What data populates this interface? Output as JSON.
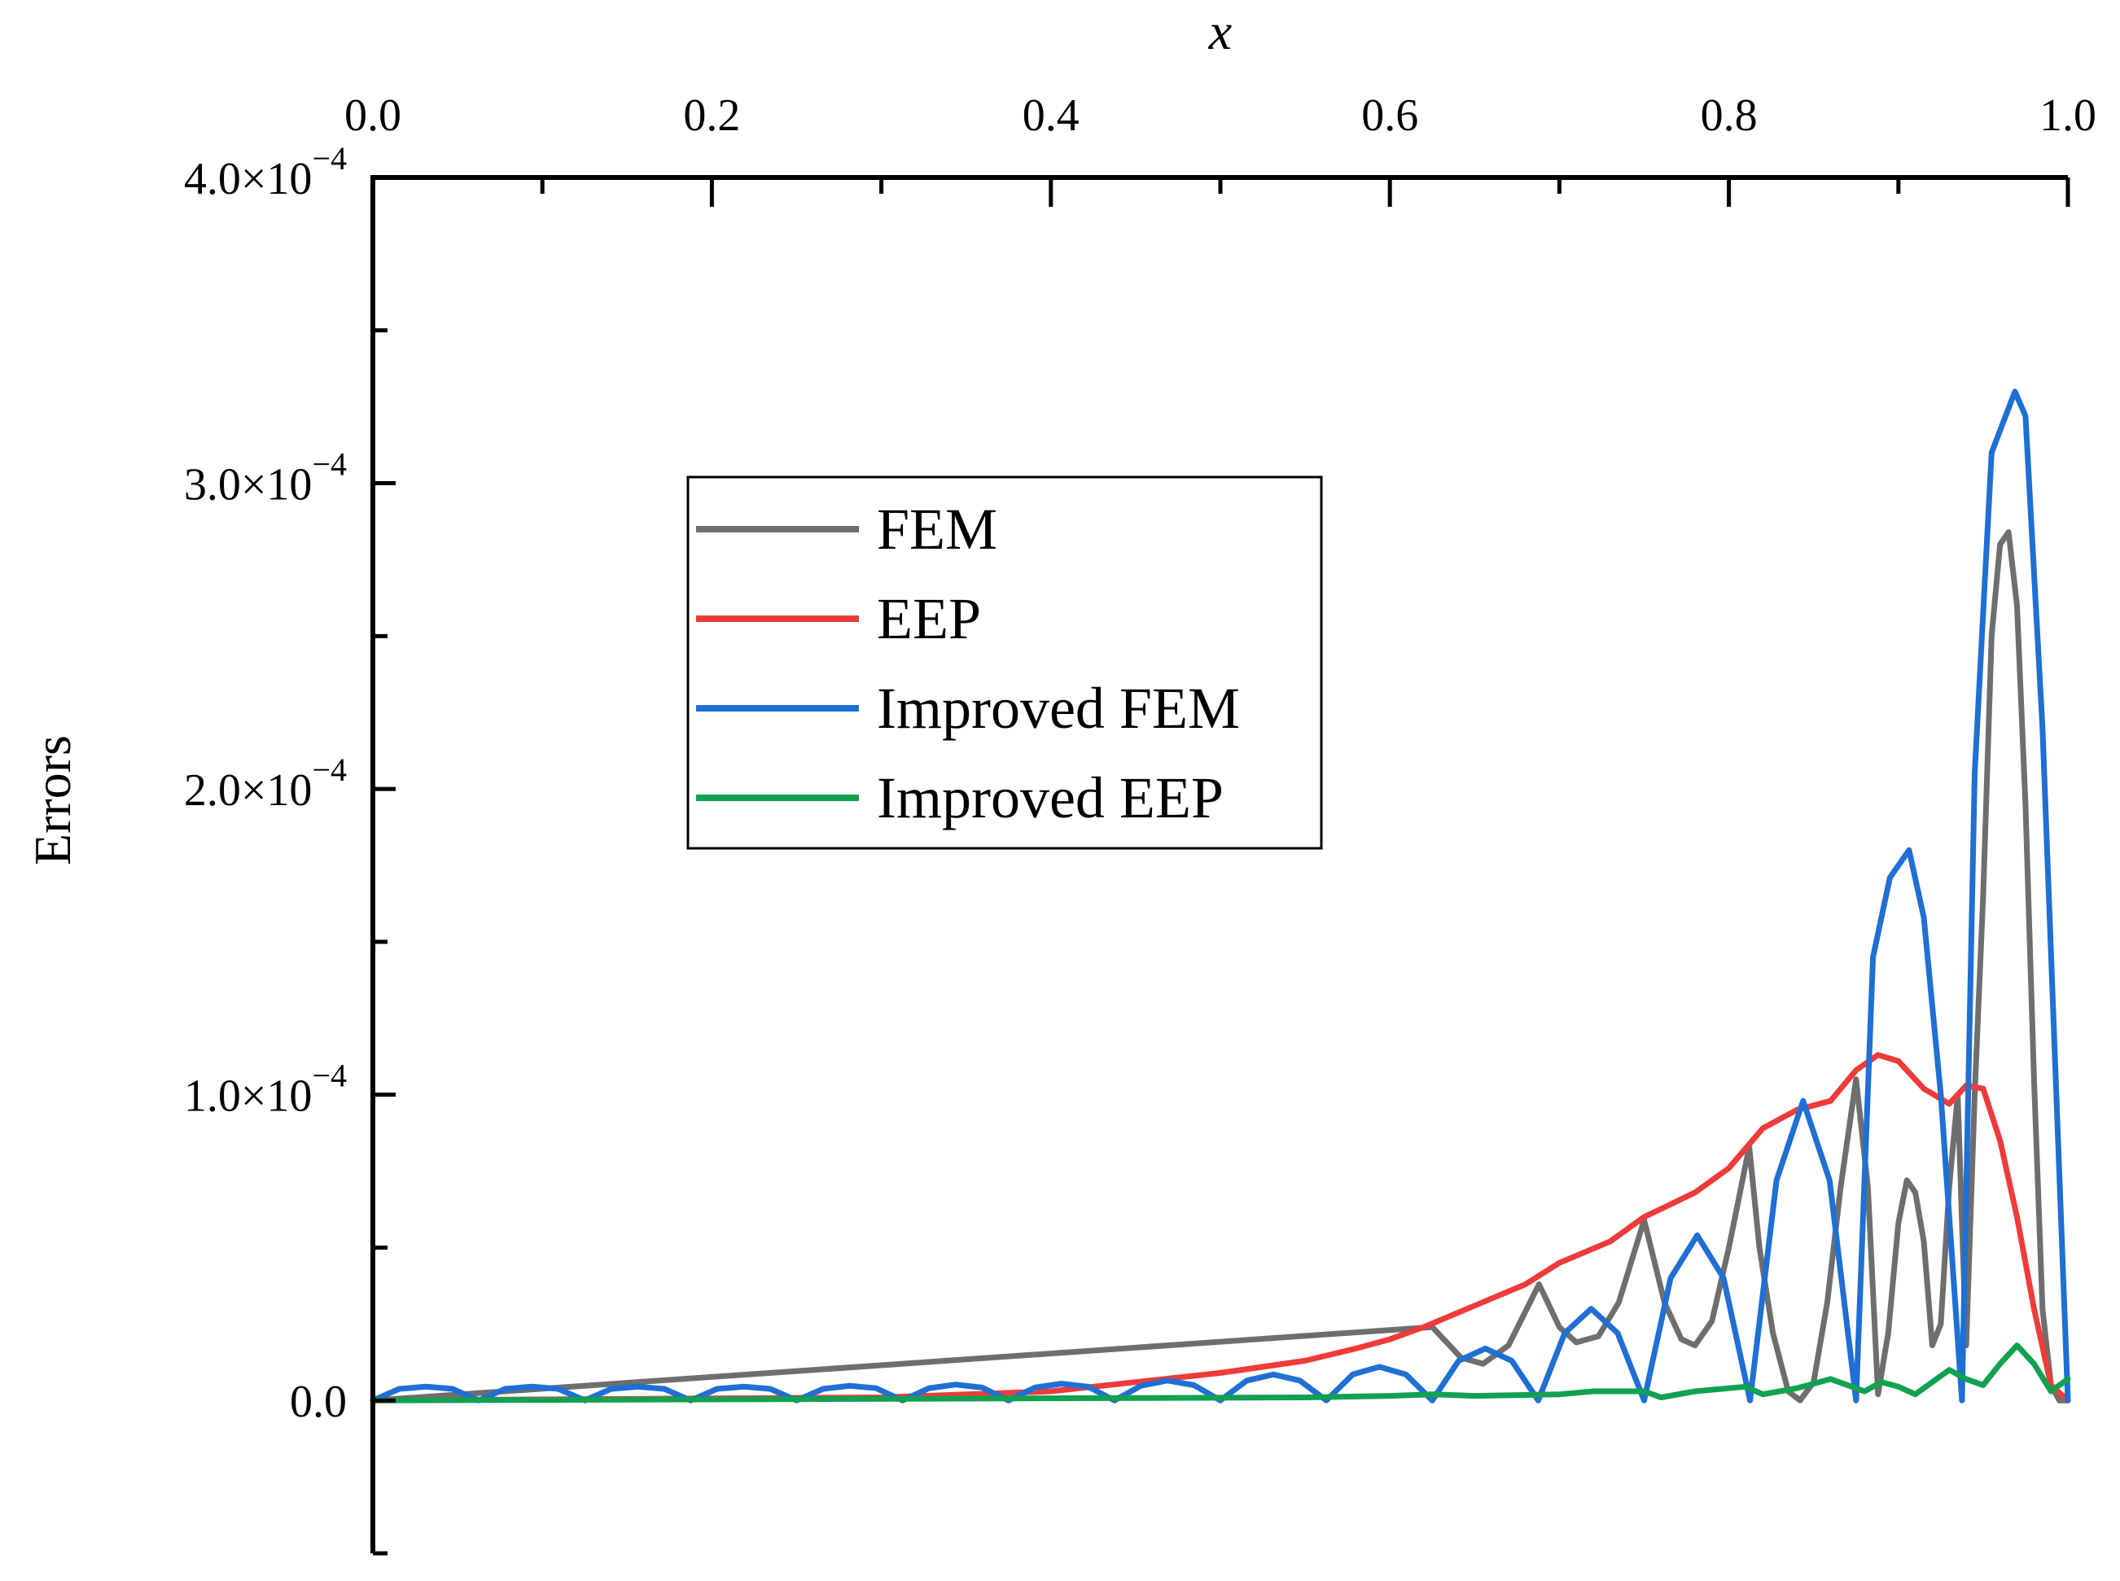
{
  "chart_data": {
    "type": "line",
    "title": "",
    "xlabel": "x",
    "ylabel": "Errors",
    "xlim": [
      0.0,
      1.0
    ],
    "ylim": [
      -5e-05,
      0.0004
    ],
    "x_ticks": [
      0.0,
      0.2,
      0.4,
      0.6,
      0.8,
      1.0
    ],
    "x_tick_labels": [
      "0.0",
      "0.2",
      "0.4",
      "0.6",
      "0.8",
      "1.0"
    ],
    "y_ticks": [
      0.0,
      0.0001,
      0.0002,
      0.0003,
      0.0004
    ],
    "y_tick_labels": [
      {
        "mantissa": "0.0",
        "exponent": ""
      },
      {
        "mantissa": "1.0×10",
        "exponent": "−4"
      },
      {
        "mantissa": "2.0×10",
        "exponent": "−4"
      },
      {
        "mantissa": "3.0×10",
        "exponent": "−4"
      },
      {
        "mantissa": "4.0×10",
        "exponent": "−4"
      }
    ],
    "legend_position": "upper-left-center",
    "series": [
      {
        "name": "FEM",
        "color": "#6e6e6e",
        "x": [
          0.0,
          0.625,
          0.642,
          0.655,
          0.67,
          0.688,
          0.7,
          0.71,
          0.723,
          0.735,
          0.75,
          0.762,
          0.772,
          0.78,
          0.79,
          0.8,
          0.812,
          0.818,
          0.826,
          0.835,
          0.842,
          0.85,
          0.858,
          0.866,
          0.875,
          0.882,
          0.888,
          0.894,
          0.9,
          0.905,
          0.91,
          0.915,
          0.92,
          0.925,
          0.93,
          0.935,
          0.938,
          0.94,
          0.945,
          0.95,
          0.955,
          0.96,
          0.965,
          0.97,
          0.975,
          0.98,
          0.985,
          0.99,
          0.995,
          1.0
        ],
        "y": [
          0.0,
          2.4e-05,
          1.4e-05,
          1.2e-05,
          1.8e-05,
          3.8e-05,
          2.4e-05,
          1.9e-05,
          2.1e-05,
          3.2e-05,
          5.9e-05,
          3.2e-05,
          2e-05,
          1.8e-05,
          2.6e-05,
          5e-05,
          8.3e-05,
          5e-05,
          2.2e-05,
          3e-06,
          0.0,
          6e-06,
          3.2e-05,
          7e-05,
          0.000105,
          7e-05,
          2e-06,
          2.2e-05,
          5.8e-05,
          7.2e-05,
          6.8e-05,
          5.2e-05,
          1.8e-05,
          2.5e-05,
          7e-05,
          0.0001,
          5e-05,
          1.8e-05,
          0.0001,
          0.000165,
          0.00025,
          0.00028,
          0.000284,
          0.00026,
          0.000195,
          0.000105,
          3e-05,
          5e-06,
          0.0,
          0.0
        ]
      },
      {
        "name": "EEP",
        "color": "#ef3b39",
        "x": [
          0.0,
          0.3,
          0.4,
          0.45,
          0.5,
          0.55,
          0.58,
          0.6,
          0.62,
          0.65,
          0.68,
          0.7,
          0.73,
          0.75,
          0.78,
          0.8,
          0.82,
          0.84,
          0.86,
          0.875,
          0.888,
          0.9,
          0.915,
          0.93,
          0.94,
          0.95,
          0.96,
          0.97,
          0.98,
          0.99,
          1.0
        ],
        "y": [
          0.0,
          1e-06,
          3e-06,
          6e-06,
          9e-06,
          1.3e-05,
          1.7e-05,
          2e-05,
          2.4e-05,
          3.1e-05,
          3.8e-05,
          4.5e-05,
          5.2e-05,
          6e-05,
          6.8e-05,
          7.6e-05,
          8.9e-05,
          9.5e-05,
          9.8e-05,
          0.000108,
          0.000113,
          0.000111,
          0.000102,
          9.7e-05,
          0.000103,
          0.000102,
          8.5e-05,
          6e-05,
          3e-05,
          5e-06,
          0.0
        ]
      },
      {
        "name": "Improved FEM",
        "color": "#1f6fd4",
        "x": [
          0.0,
          0.0156,
          0.0313,
          0.0469,
          0.0625,
          0.0781,
          0.0938,
          0.1094,
          0.125,
          0.1406,
          0.1563,
          0.1719,
          0.1875,
          0.2031,
          0.2188,
          0.2344,
          0.25,
          0.2656,
          0.2813,
          0.2969,
          0.3125,
          0.3281,
          0.3438,
          0.3594,
          0.375,
          0.3906,
          0.4063,
          0.4219,
          0.4375,
          0.4531,
          0.4688,
          0.4844,
          0.5,
          0.5156,
          0.5313,
          0.5469,
          0.5625,
          0.5781,
          0.5938,
          0.6094,
          0.625,
          0.6406,
          0.6563,
          0.6719,
          0.6875,
          0.7031,
          0.7188,
          0.7344,
          0.75,
          0.7656,
          0.7813,
          0.7969,
          0.8125,
          0.8281,
          0.8438,
          0.8594,
          0.875,
          0.885,
          0.895,
          0.9063,
          0.915,
          0.925,
          0.9375,
          0.945,
          0.955,
          0.9688,
          0.975,
          0.985,
          1.0
        ],
        "y": [
          0.0,
          3.8e-06,
          4.5e-06,
          3.8e-06,
          0.0,
          3.8e-06,
          4.5e-06,
          3.8e-06,
          0.0,
          3.8e-06,
          4.5e-06,
          3.8e-06,
          0.0,
          3.8e-06,
          4.5e-06,
          3.8e-06,
          0.0,
          3.8e-06,
          4.8e-06,
          4e-06,
          0.0,
          4e-06,
          5.2e-06,
          4.2e-06,
          0.0,
          4.2e-06,
          5.5e-06,
          4.5e-06,
          0.0,
          4.8e-06,
          6.5e-06,
          5e-06,
          0.0,
          6.5e-06,
          8.5e-06,
          6.5e-06,
          0.0,
          8.5e-06,
          1.1e-05,
          8.5e-06,
          0.0,
          1.3e-05,
          1.7e-05,
          1.3e-05,
          0.0,
          2.2e-05,
          3e-05,
          2.2e-05,
          0.0,
          4e-05,
          5.4e-05,
          4e-05,
          0.0,
          7.2e-05,
          9.8e-05,
          7.2e-05,
          0.0,
          0.000145,
          0.000171,
          0.00018,
          0.000158,
          0.0001,
          0.0,
          0.000205,
          0.00031,
          0.00033,
          0.000322,
          0.00022,
          0.0
        ]
      },
      {
        "name": "Improved EEP",
        "color": "#12a150",
        "x": [
          0.0,
          0.3,
          0.55,
          0.6,
          0.625,
          0.65,
          0.7,
          0.72,
          0.75,
          0.76,
          0.78,
          0.8,
          0.81,
          0.82,
          0.83,
          0.84,
          0.85,
          0.86,
          0.87,
          0.88,
          0.89,
          0.9,
          0.91,
          0.92,
          0.93,
          0.94,
          0.95,
          0.96,
          0.97,
          0.98,
          0.99,
          1.0
        ],
        "y": [
          0.0,
          5e-07,
          1e-06,
          1.5e-06,
          2e-06,
          1.5e-06,
          2e-06,
          3e-06,
          3e-06,
          1e-06,
          3e-06,
          4e-06,
          4.5e-06,
          2e-06,
          3e-06,
          4e-06,
          5.5e-06,
          7e-06,
          5e-06,
          3e-06,
          6e-06,
          4.5e-06,
          2e-06,
          6e-06,
          1e-05,
          7e-06,
          5e-06,
          1.2e-05,
          1.8e-05,
          1.2e-05,
          3e-06,
          7e-06
        ]
      }
    ]
  }
}
